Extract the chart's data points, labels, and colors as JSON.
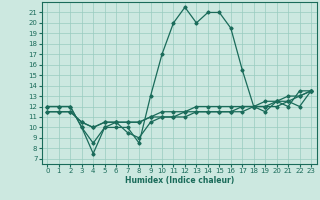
{
  "xlabel": "Humidex (Indice chaleur)",
  "bg_color": "#cce8e0",
  "grid_color": "#99ccc0",
  "line_color": "#1a6b5a",
  "xlim": [
    -0.5,
    23.5
  ],
  "ylim": [
    6.5,
    22
  ],
  "yticks": [
    7,
    8,
    9,
    10,
    11,
    12,
    13,
    14,
    15,
    16,
    17,
    18,
    19,
    20,
    21
  ],
  "xticks": [
    0,
    1,
    2,
    3,
    4,
    5,
    6,
    7,
    8,
    9,
    10,
    11,
    12,
    13,
    14,
    15,
    16,
    17,
    18,
    19,
    20,
    21,
    22,
    23
  ],
  "series": [
    {
      "x": [
        0,
        1,
        2,
        3,
        4,
        5,
        6,
        7,
        8,
        9,
        10,
        11,
        12,
        13,
        14,
        15,
        16,
        17,
        18,
        19,
        20,
        21,
        22,
        23
      ],
      "y": [
        12,
        12,
        12,
        10,
        7.5,
        10,
        10,
        10,
        8.5,
        13,
        17,
        20,
        21.5,
        20,
        21,
        21,
        19.5,
        15.5,
        12,
        11.5,
        12.5,
        12,
        13.5,
        13.5
      ]
    },
    {
      "x": [
        0,
        1,
        2,
        3,
        4,
        5,
        6,
        7,
        8,
        9,
        10,
        11,
        12,
        13,
        14,
        15,
        16,
        17,
        18,
        19,
        20,
        21,
        22,
        23
      ],
      "y": [
        12,
        12,
        12,
        10,
        8.5,
        10,
        10.5,
        9.5,
        9,
        10.5,
        11,
        11,
        11,
        11.5,
        11.5,
        11.5,
        11.5,
        12,
        12,
        12,
        12,
        12.5,
        12,
        13.5
      ]
    },
    {
      "x": [
        0,
        1,
        2,
        3,
        4,
        5,
        6,
        7,
        8,
        9,
        10,
        11,
        12,
        13,
        14,
        15,
        16,
        17,
        18,
        19,
        20,
        21,
        22,
        23
      ],
      "y": [
        11.5,
        11.5,
        11.5,
        10.5,
        10,
        10.5,
        10.5,
        10.5,
        10.5,
        11,
        11,
        11,
        11.5,
        11.5,
        11.5,
        11.5,
        11.5,
        11.5,
        12,
        12,
        12.5,
        12.5,
        13,
        13.5
      ]
    },
    {
      "x": [
        0,
        1,
        2,
        3,
        4,
        5,
        6,
        7,
        8,
        9,
        10,
        11,
        12,
        13,
        14,
        15,
        16,
        17,
        18,
        19,
        20,
        21,
        22,
        23
      ],
      "y": [
        11.5,
        11.5,
        11.5,
        10.5,
        10,
        10.5,
        10.5,
        10.5,
        10.5,
        11,
        11.5,
        11.5,
        11.5,
        12,
        12,
        12,
        12,
        12,
        12,
        12.5,
        12.5,
        13,
        13,
        13.5
      ]
    }
  ]
}
